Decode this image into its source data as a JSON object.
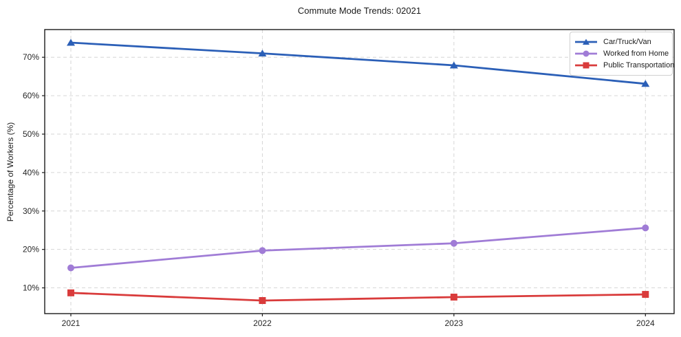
{
  "figure": {
    "title": "Commute Mode Trends: 02021",
    "ylabel": "Percentage of Workers (%)"
  },
  "chart_data": {
    "type": "line",
    "title": "Commute Mode Trends: 02021",
    "xlabel": "",
    "ylabel": "Percentage of Workers (%)",
    "categories": [
      "2021",
      "2022",
      "2023",
      "2024"
    ],
    "series": [
      {
        "name": "Car/Truck/Van",
        "color": "#2b5fb7",
        "marker": "triangle",
        "values": [
          73.8,
          71.0,
          67.9,
          63.1
        ]
      },
      {
        "name": "Worked from Home",
        "color": "#a07cd6",
        "marker": "circle",
        "values": [
          15.2,
          19.7,
          21.6,
          25.6
        ]
      },
      {
        "name": "Public Transportation",
        "color": "#d93b3b",
        "marker": "square",
        "values": [
          8.7,
          6.7,
          7.6,
          8.3
        ]
      }
    ],
    "yticks": [
      10,
      20,
      30,
      40,
      50,
      60,
      70
    ],
    "ytick_labels": [
      "10%",
      "20%",
      "30%",
      "40%",
      "50%",
      "60%",
      "70%"
    ],
    "ylim": [
      3.3,
      77.2
    ],
    "grid": "dashed",
    "grid_color": "#d6d6d6",
    "axis_color": "#1a1a1a",
    "legend_position": "upper right"
  }
}
